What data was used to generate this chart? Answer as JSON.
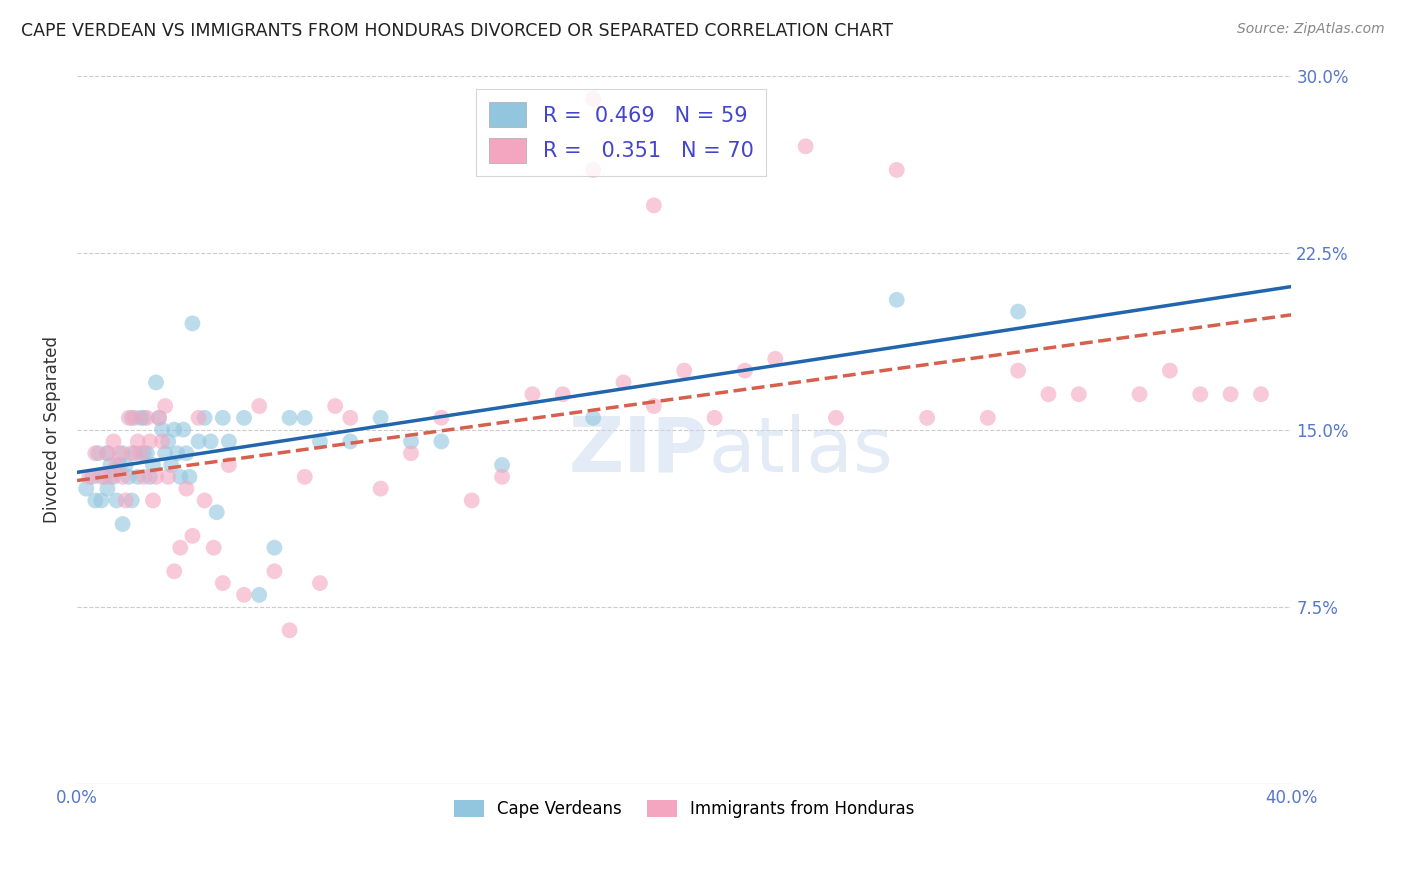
{
  "title": "CAPE VERDEAN VS IMMIGRANTS FROM HONDURAS DIVORCED OR SEPARATED CORRELATION CHART",
  "source": "Source: ZipAtlas.com",
  "ylabel": "Divorced or Separated",
  "watermark": "ZIPatlas",
  "legend_line1": "R =  0.469   N = 59",
  "legend_line2": "R =   0.351   N = 70",
  "color_blue": "#92c5de",
  "color_pink": "#f4a6c0",
  "line_color_blue": "#2166ac",
  "line_color_pink": "#d6604d",
  "background_color": "#ffffff",
  "grid_color": "#cccccc",
  "xlim": [
    0.0,
    0.4
  ],
  "ylim": [
    0.0,
    0.3
  ],
  "yticks": [
    0.0,
    0.075,
    0.15,
    0.225,
    0.3
  ],
  "ytick_labels_right": [
    "",
    "7.5%",
    "15.0%",
    "22.5%",
    "30.0%"
  ],
  "xtick_positions": [
    0.0,
    0.08,
    0.16,
    0.24,
    0.32,
    0.4
  ],
  "xtick_labels": [
    "0.0%",
    "",
    "",
    "",
    "",
    "40.0%"
  ],
  "cape_verdean_x": [
    0.003,
    0.005,
    0.006,
    0.007,
    0.008,
    0.009,
    0.01,
    0.01,
    0.011,
    0.012,
    0.013,
    0.014,
    0.015,
    0.015,
    0.016,
    0.017,
    0.018,
    0.018,
    0.019,
    0.02,
    0.021,
    0.022,
    0.022,
    0.023,
    0.024,
    0.025,
    0.026,
    0.027,
    0.028,
    0.029,
    0.03,
    0.031,
    0.032,
    0.033,
    0.034,
    0.035,
    0.036,
    0.037,
    0.038,
    0.04,
    0.042,
    0.044,
    0.046,
    0.048,
    0.05,
    0.055,
    0.06,
    0.065,
    0.07,
    0.075,
    0.08,
    0.09,
    0.1,
    0.11,
    0.12,
    0.14,
    0.17,
    0.27,
    0.31
  ],
  "cape_verdean_y": [
    0.125,
    0.13,
    0.12,
    0.14,
    0.12,
    0.13,
    0.125,
    0.14,
    0.135,
    0.13,
    0.12,
    0.135,
    0.11,
    0.14,
    0.135,
    0.13,
    0.12,
    0.155,
    0.14,
    0.13,
    0.155,
    0.14,
    0.155,
    0.14,
    0.13,
    0.135,
    0.17,
    0.155,
    0.15,
    0.14,
    0.145,
    0.135,
    0.15,
    0.14,
    0.13,
    0.15,
    0.14,
    0.13,
    0.195,
    0.145,
    0.155,
    0.145,
    0.115,
    0.155,
    0.145,
    0.155,
    0.08,
    0.1,
    0.155,
    0.155,
    0.145,
    0.145,
    0.155,
    0.145,
    0.145,
    0.135,
    0.155,
    0.205,
    0.2
  ],
  "honduras_x": [
    0.004,
    0.006,
    0.008,
    0.01,
    0.011,
    0.012,
    0.013,
    0.014,
    0.015,
    0.016,
    0.017,
    0.018,
    0.019,
    0.02,
    0.021,
    0.022,
    0.023,
    0.024,
    0.025,
    0.026,
    0.027,
    0.028,
    0.029,
    0.03,
    0.032,
    0.034,
    0.036,
    0.038,
    0.04,
    0.042,
    0.045,
    0.048,
    0.05,
    0.055,
    0.06,
    0.065,
    0.07,
    0.075,
    0.08,
    0.085,
    0.09,
    0.1,
    0.11,
    0.12,
    0.13,
    0.14,
    0.15,
    0.16,
    0.17,
    0.18,
    0.19,
    0.2,
    0.21,
    0.22,
    0.23,
    0.24,
    0.25,
    0.27,
    0.28,
    0.3,
    0.31,
    0.32,
    0.33,
    0.35,
    0.36,
    0.37,
    0.38,
    0.39,
    0.17,
    0.19
  ],
  "honduras_y": [
    0.13,
    0.14,
    0.13,
    0.14,
    0.13,
    0.145,
    0.135,
    0.14,
    0.13,
    0.12,
    0.155,
    0.14,
    0.155,
    0.145,
    0.14,
    0.13,
    0.155,
    0.145,
    0.12,
    0.13,
    0.155,
    0.145,
    0.16,
    0.13,
    0.09,
    0.1,
    0.125,
    0.105,
    0.155,
    0.12,
    0.1,
    0.085,
    0.135,
    0.08,
    0.16,
    0.09,
    0.065,
    0.13,
    0.085,
    0.16,
    0.155,
    0.125,
    0.14,
    0.155,
    0.12,
    0.13,
    0.165,
    0.165,
    0.26,
    0.17,
    0.16,
    0.175,
    0.155,
    0.175,
    0.18,
    0.27,
    0.155,
    0.26,
    0.155,
    0.155,
    0.175,
    0.165,
    0.165,
    0.165,
    0.175,
    0.165,
    0.165,
    0.165,
    0.29,
    0.245
  ]
}
